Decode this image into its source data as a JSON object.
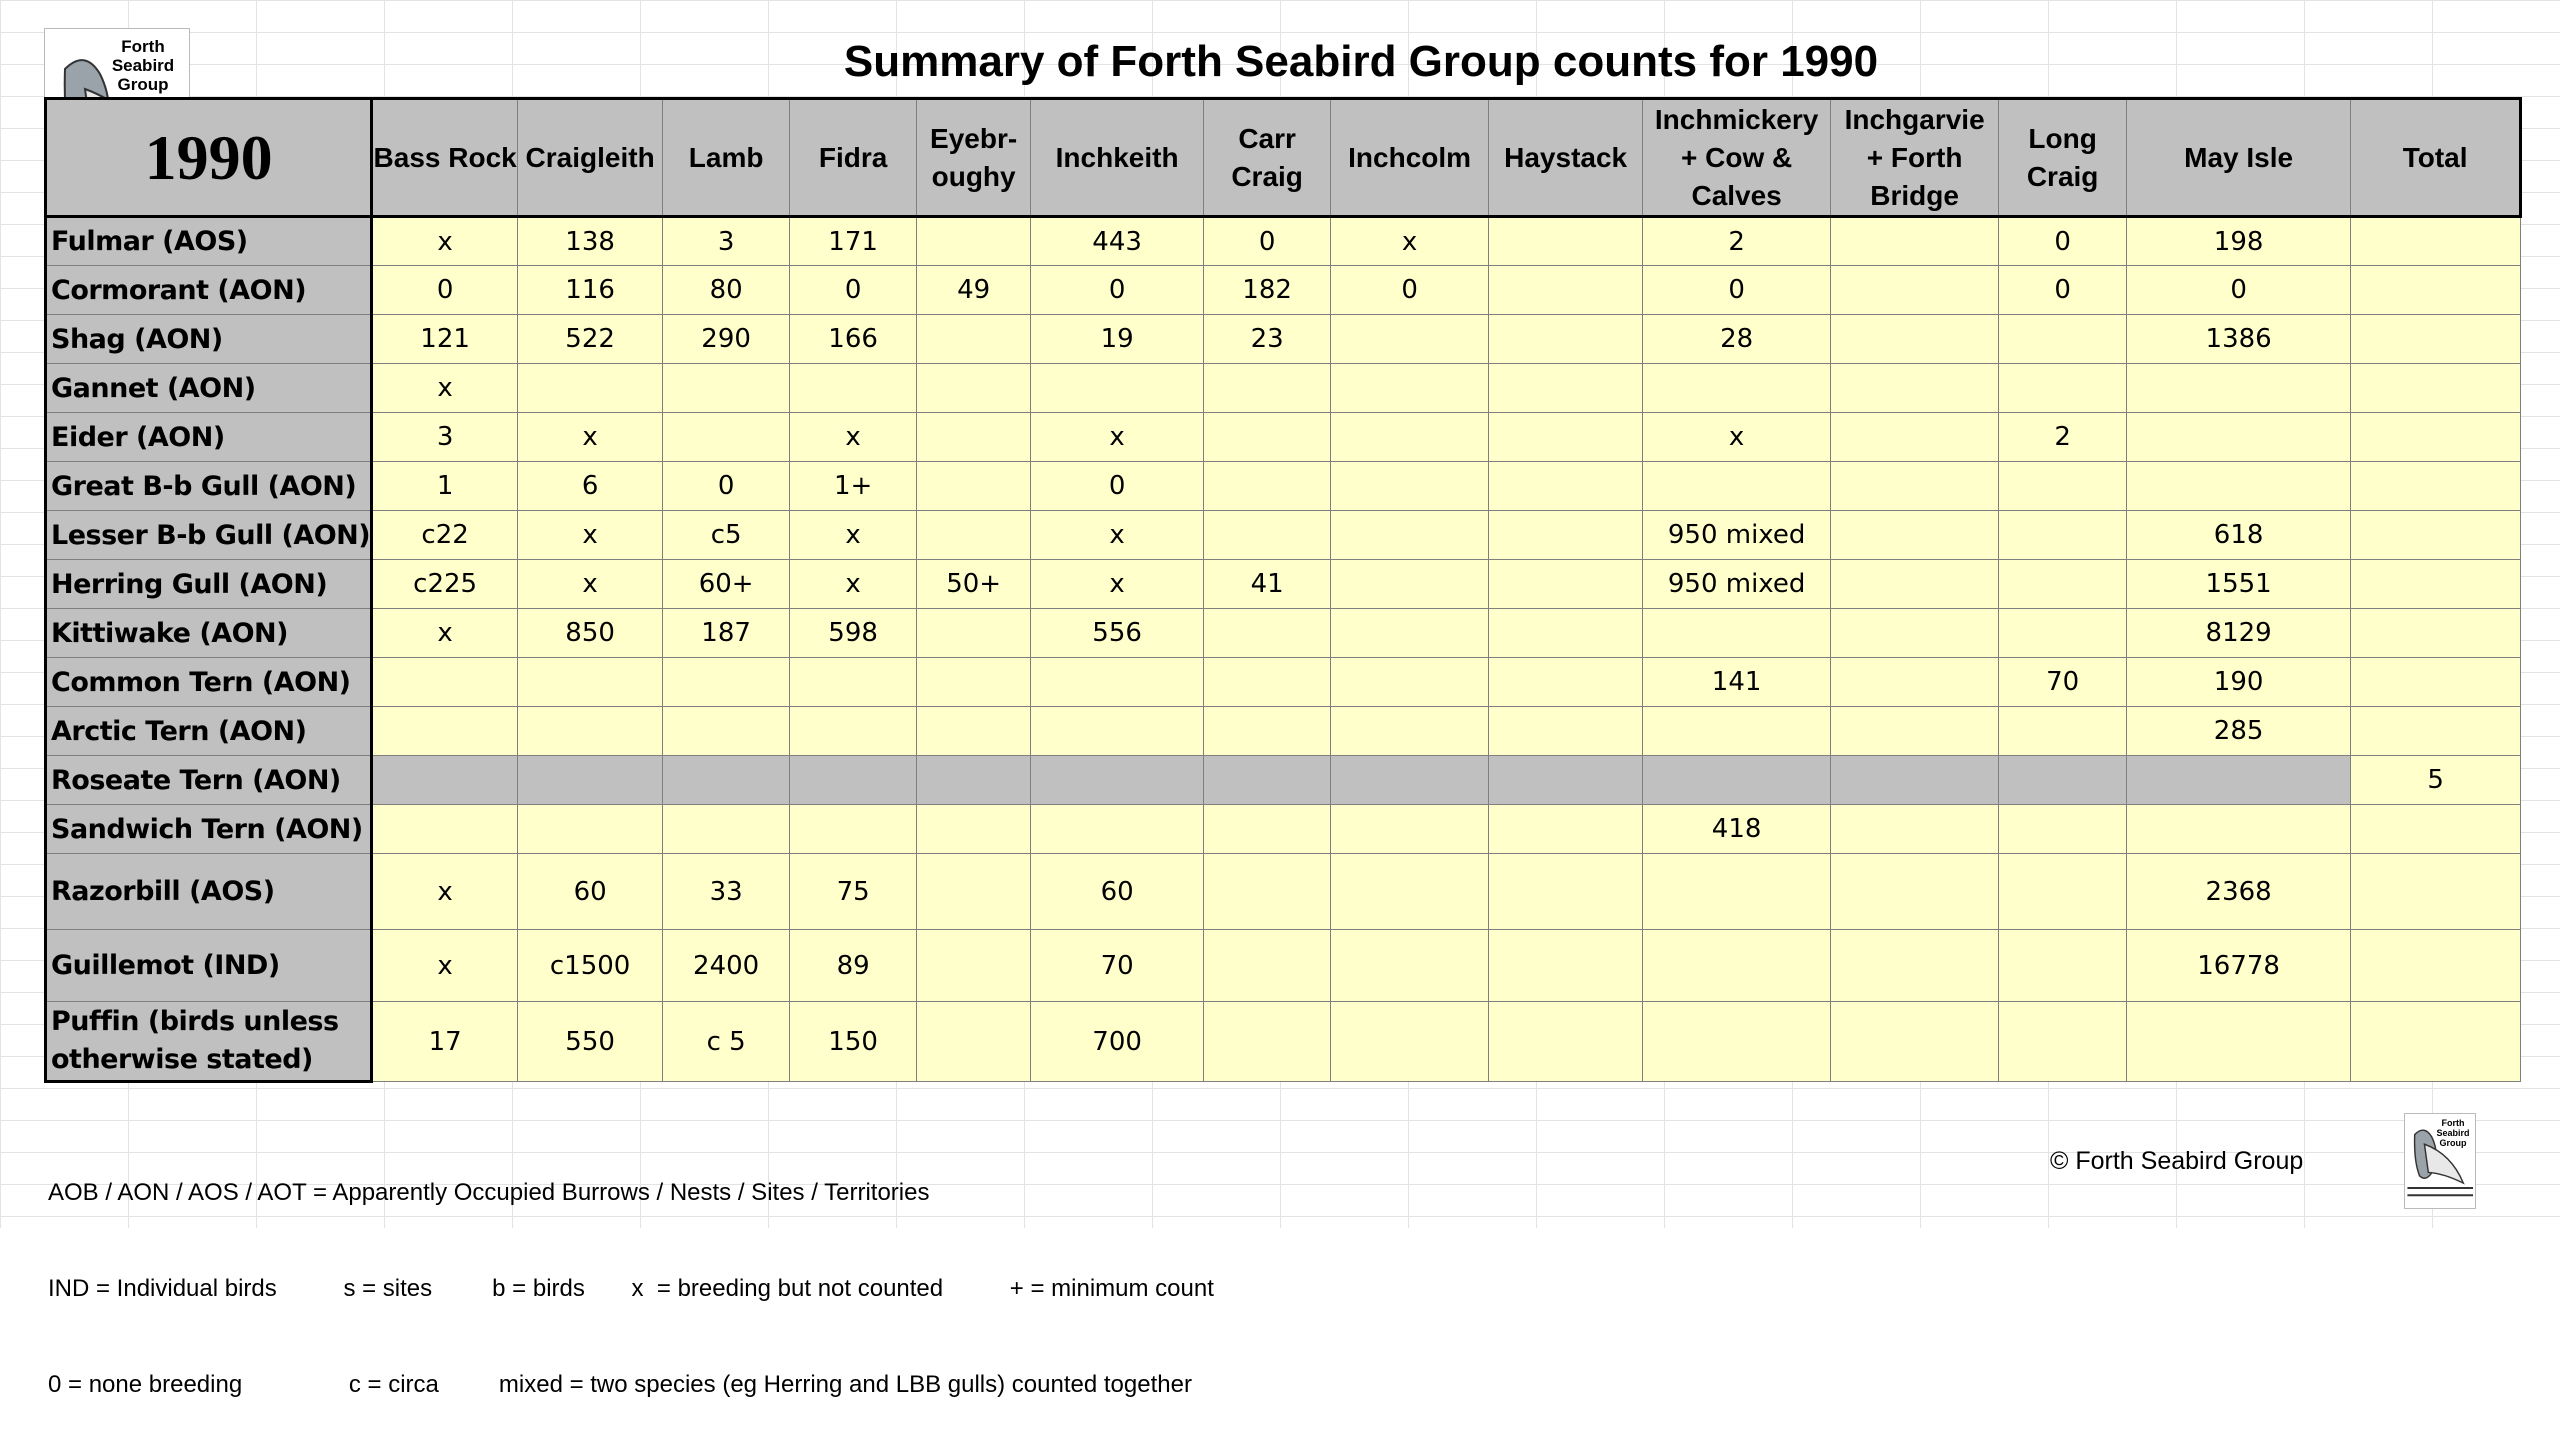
{
  "logo": {
    "text_lines": [
      "Forth",
      "Seabird",
      "Group"
    ]
  },
  "title": "Summary of Forth Seabird Group counts for 1990",
  "table": {
    "year_label": "1990",
    "columns": [
      [
        "Bass Rock"
      ],
      [
        "Craigleith"
      ],
      [
        "Lamb"
      ],
      [
        "Fidra"
      ],
      [
        "Eyebr-",
        "oughy"
      ],
      [
        "Inchkeith"
      ],
      [
        "Carr",
        "Craig"
      ],
      [
        "Inchcolm"
      ],
      [
        "Haystack"
      ],
      [
        "Inchmickery",
        "+ Cow &",
        "Calves"
      ],
      [
        "Inchgarvie",
        "+ Forth",
        "Bridge"
      ],
      [
        "Long",
        "Craig"
      ],
      [
        "May Isle"
      ],
      [
        "Total"
      ]
    ],
    "rows": [
      {
        "species": "Fulmar (AOS)",
        "values": [
          "x",
          "138",
          "3",
          "171",
          "",
          "443",
          "0",
          "x",
          "",
          "2",
          "",
          "0",
          "198",
          ""
        ]
      },
      {
        "species": "Cormorant (AON)",
        "values": [
          "0",
          "116",
          "80",
          "0",
          "49",
          "0",
          "182",
          "0",
          "",
          "0",
          "",
          "0",
          "0",
          ""
        ]
      },
      {
        "species": "Shag (AON)",
        "values": [
          "121",
          "522",
          "290",
          "166",
          "",
          "19",
          "23",
          "",
          "",
          "28",
          "",
          "",
          "1386",
          ""
        ]
      },
      {
        "species": "Gannet (AON)",
        "values": [
          "x",
          "",
          "",
          "",
          "",
          "",
          "",
          "",
          "",
          "",
          "",
          "",
          "",
          ""
        ]
      },
      {
        "species": "Eider (AON)",
        "values": [
          "3",
          "x",
          "",
          "x",
          "",
          "x",
          "",
          "",
          "",
          "x",
          "",
          "2",
          "",
          ""
        ]
      },
      {
        "species": "Great B-b Gull (AON)",
        "values": [
          "1",
          "6",
          "0",
          "1+",
          "",
          "0",
          "",
          "",
          "",
          "",
          "",
          "",
          "",
          ""
        ]
      },
      {
        "species": "Lesser B-b Gull (AON)",
        "values": [
          "c22",
          "x",
          "c5",
          "x",
          "",
          "x",
          "",
          "",
          "",
          "950 mixed",
          "",
          "",
          "618",
          ""
        ]
      },
      {
        "species": "Herring Gull (AON)",
        "values": [
          "c225",
          "x",
          "60+",
          "x",
          "50+",
          "x",
          "41",
          "",
          "",
          "950 mixed",
          "",
          "",
          "1551",
          ""
        ]
      },
      {
        "species": "Kittiwake (AON)",
        "values": [
          "x",
          "850",
          "187",
          "598",
          "",
          "556",
          "",
          "",
          "",
          "",
          "",
          "",
          "8129",
          ""
        ]
      },
      {
        "species": "Common Tern (AON)",
        "values": [
          "",
          "",
          "",
          "",
          "",
          "",
          "",
          "",
          "",
          "141",
          "",
          "70",
          "190",
          ""
        ]
      },
      {
        "species": "Arctic Tern (AON)",
        "values": [
          "",
          "",
          "",
          "",
          "",
          "",
          "",
          "",
          "",
          "",
          "",
          "",
          "285",
          ""
        ]
      },
      {
        "species": "Roseate Tern (AON)",
        "values": [
          "",
          "",
          "",
          "",
          "",
          "",
          "",
          "",
          "",
          "",
          "",
          "",
          "",
          "5"
        ]
      },
      {
        "species": "Sandwich Tern (AON)",
        "values": [
          "",
          "",
          "",
          "",
          "",
          "",
          "",
          "",
          "",
          "418",
          "",
          "",
          "",
          ""
        ]
      },
      {
        "species": "Razorbill (AOS)",
        "values": [
          "x",
          "60",
          "33",
          "75",
          "",
          "60",
          "",
          "",
          "",
          "",
          "",
          "",
          "2368",
          ""
        ]
      },
      {
        "species": "Guillemot (IND)",
        "values": [
          "x",
          "c1500",
          "2400",
          "89",
          "",
          "70",
          "",
          "",
          "",
          "",
          "",
          "",
          "16778",
          ""
        ]
      },
      {
        "species": "Puffin (birds unless otherwise stated)",
        "values": [
          "17",
          "550",
          "c 5",
          "150",
          "",
          "700",
          "",
          "",
          "",
          "",
          "",
          "",
          "",
          ""
        ]
      }
    ]
  },
  "footer": {
    "line1": "AOB / AON / AOS / AOT = Apparently Occupied Burrows / Nests / Sites / Territories",
    "line2": "IND = Individual birds          s = sites         b = birds       x  = breeding but not counted          + = minimum count",
    "line3": "0 = none breeding                c = circa         mixed = two species (eg Herring and LBB gulls) counted together",
    "copyright": "© Forth Seabird Group"
  },
  "colors": {
    "cell_fill": "#ffffcc",
    "header_fill": "#c0c0c0"
  }
}
